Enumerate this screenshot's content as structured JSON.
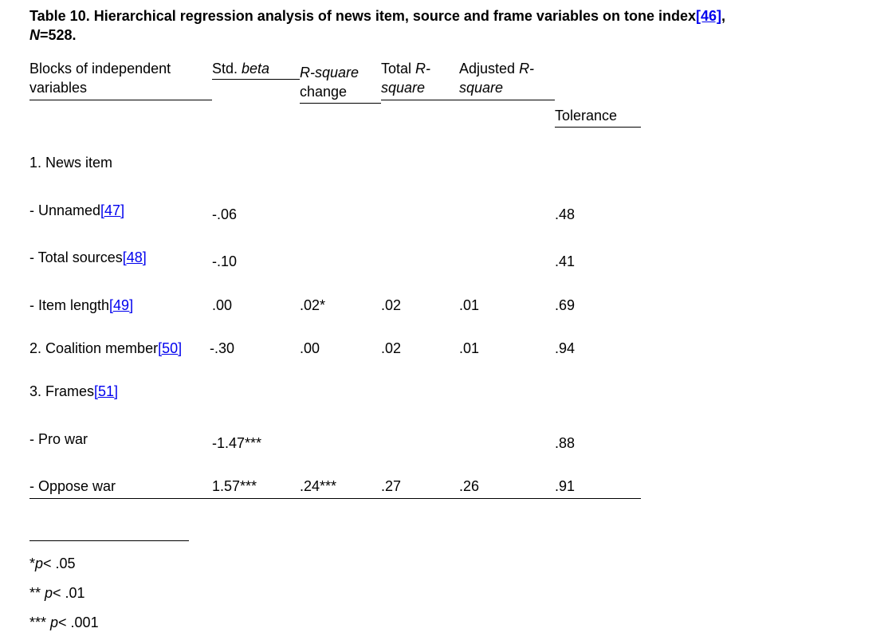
{
  "title": {
    "prefix": "Table 10. Hierarchical regression analysis of news item, source and frame variables on tone index",
    "ref": "[46]",
    "suffix": ",",
    "n_label": "N",
    "n_value": "=528."
  },
  "headers": {
    "blocks_l1": "Blocks of independent",
    "blocks_l2": "variables",
    "std": "Std. ",
    "std_italic": "beta",
    "rsq_italic": "R-square",
    "rsq_l2": "change",
    "total": "Total ",
    "total_italic": "R-",
    "total_l2": "square",
    "adj": "Adjusted ",
    "adj_italic": "R-",
    "adj_l2": "square",
    "tolerance": "Tolerance"
  },
  "rows": [
    {
      "label": "1. News item",
      "ref": "",
      "beta": "",
      "rsq": "",
      "total": "",
      "adj": "",
      "tol": ""
    },
    {
      "label": "- Unnamed",
      "ref": "[47]",
      "beta": "-.06",
      "rsq": "",
      "total": "",
      "adj": "",
      "tol": ".48"
    },
    {
      "label": "- Total sources",
      "ref": "[48]",
      "beta": "-.10",
      "rsq": "",
      "total": "",
      "adj": "",
      "tol": ".41"
    },
    {
      "label": "- Item length",
      "ref": "[49]",
      "beta": ".00",
      "rsq": ".02*",
      "total": ".02",
      "adj": ".01",
      "tol": ".69"
    },
    {
      "label": "2. Coalition member",
      "ref": "[50]",
      "beta": "-.30",
      "rsq": ".00",
      "total": ".02",
      "adj": ".01",
      "tol": ".94"
    },
    {
      "label": "3. Frames",
      "ref": "[51]",
      "beta": "",
      "rsq": "",
      "total": "",
      "adj": "",
      "tol": ""
    },
    {
      "label": "- Pro war",
      "ref": "",
      "beta": "-1.47***",
      "rsq": "",
      "total": "",
      "adj": "",
      "tol": ".88"
    },
    {
      "label": "- Oppose war",
      "ref": "",
      "beta": "1.57***",
      "rsq": ".24***",
      "total": ".27",
      "adj": ".26",
      "tol": ".91"
    }
  ],
  "footnotes": [
    {
      "stars": "*",
      "p": "p",
      "rest": "< .05"
    },
    {
      "stars": "** ",
      "p": "p",
      "rest": "< .01"
    },
    {
      "stars": "*** ",
      "p": "p",
      "rest": "< .001"
    }
  ]
}
